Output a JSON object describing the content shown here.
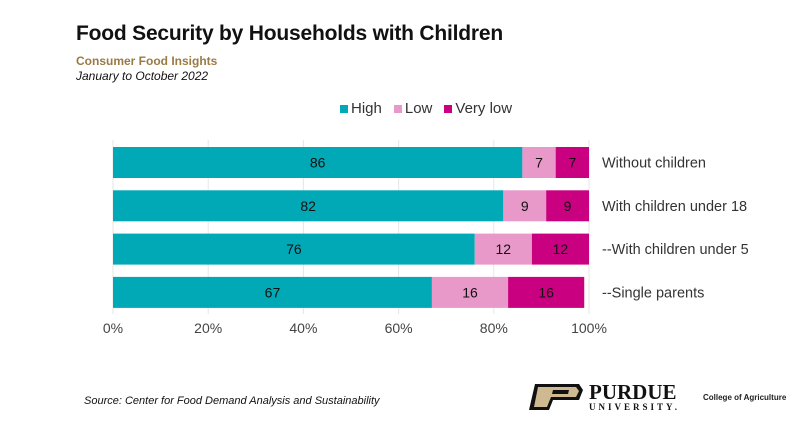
{
  "header": {
    "title": "Food Security by Households with Children",
    "subtitle": "Consumer Food Insights",
    "period": "January to October 2022"
  },
  "colors": {
    "High": "#00a9b5",
    "Low": "#e898c9",
    "Very low": "#c9007f"
  },
  "chart_data": {
    "type": "bar",
    "orientation": "horizontal-stacked",
    "title": "Food Security by Households with Children",
    "categories": [
      "Without children",
      "With children under 18",
      "--With children under 5",
      "--Single parents"
    ],
    "series": [
      {
        "name": "High",
        "values": [
          86,
          82,
          76,
          67
        ]
      },
      {
        "name": "Low",
        "values": [
          7,
          9,
          12,
          16
        ]
      },
      {
        "name": "Very low",
        "values": [
          7,
          9,
          12,
          16
        ]
      }
    ],
    "xlim": [
      0,
      100
    ],
    "xticks": [
      "0%",
      "20%",
      "40%",
      "60%",
      "80%",
      "100%"
    ],
    "legend": "top",
    "grid": true
  },
  "footer": {
    "source": "Source:  Center for Food Demand Analysis and Sustainability",
    "logo_name": "PURDUE",
    "logo_sub": "UNIVERSITY.",
    "college": "College of Agriculture"
  }
}
